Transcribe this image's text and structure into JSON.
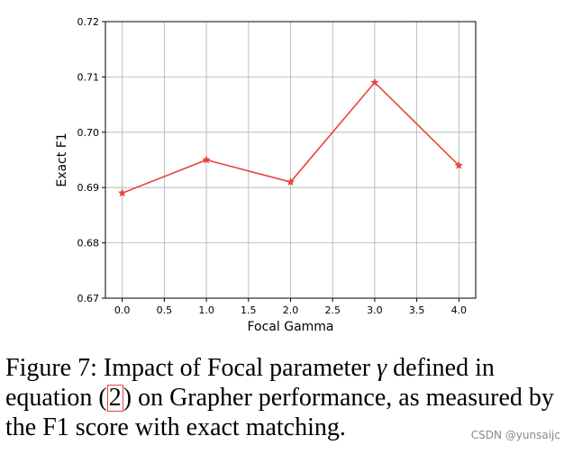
{
  "chart_data": {
    "type": "line",
    "x": [
      0.0,
      1.0,
      2.0,
      3.0,
      4.0
    ],
    "series": [
      {
        "values": [
          0.689,
          0.695,
          0.691,
          0.709,
          0.694
        ],
        "color": "#e8453c",
        "marker": "star"
      }
    ],
    "xlabel": "Focal Gamma",
    "ylabel": "Exact F1",
    "xlim": [
      -0.2,
      4.2
    ],
    "ylim": [
      0.67,
      0.72
    ],
    "xticks": [
      "0.0",
      "0.5",
      "1.0",
      "1.5",
      "2.0",
      "2.5",
      "3.0",
      "3.5",
      "4.0"
    ],
    "yticks": [
      "0.67",
      "0.68",
      "0.69",
      "0.70",
      "0.71",
      "0.72"
    ],
    "grid": true
  },
  "caption": {
    "part1": "Figure 7: Impact of Focal parameter ",
    "gamma": "γ",
    "part2": " defined in equation (",
    "ref": "2",
    "part3": ") on Grapher performance, as measured by the F1 score with exact matching."
  },
  "watermark": "CSDN @yunsaijc"
}
